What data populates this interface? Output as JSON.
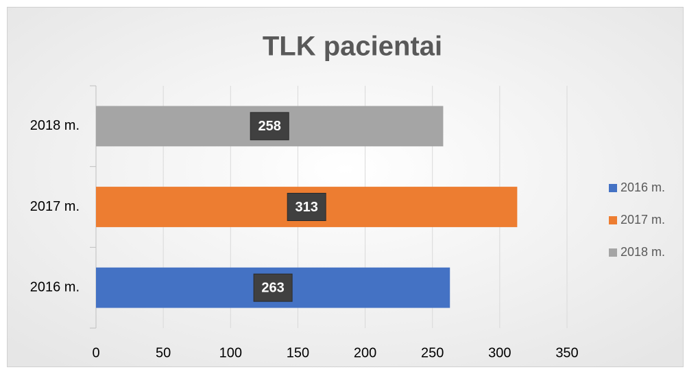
{
  "chart_data": {
    "type": "hbar",
    "title": "TLK pacientai",
    "categories": [
      "2016 m.",
      "2017 m.",
      "2018 m."
    ],
    "values": [
      263,
      313,
      258
    ],
    "colors": [
      "#4472c4",
      "#ed7d31",
      "#a5a5a5"
    ],
    "xlim": [
      0,
      350
    ],
    "xticks": [
      0,
      50,
      100,
      150,
      200,
      250,
      300,
      350
    ],
    "grid": true,
    "legend": "right",
    "data_labels": true
  }
}
